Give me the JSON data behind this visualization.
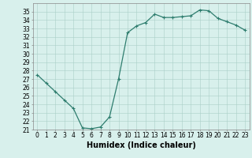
{
  "x": [
    0,
    1,
    2,
    3,
    4,
    5,
    6,
    7,
    8,
    9,
    10,
    11,
    12,
    13,
    14,
    15,
    16,
    17,
    18,
    19,
    20,
    21,
    22,
    23
  ],
  "y": [
    27.5,
    26.5,
    25.5,
    24.5,
    23.5,
    21.2,
    21.1,
    21.3,
    22.5,
    27.0,
    32.5,
    33.3,
    33.7,
    34.7,
    34.3,
    34.3,
    34.4,
    34.5,
    35.2,
    35.1,
    34.2,
    33.8,
    33.4,
    32.8
  ],
  "line_color": "#2e7d6e",
  "marker": "+",
  "marker_size": 3,
  "bg_color": "#d8f0ec",
  "grid_color": "#aacfc8",
  "xlabel": "Humidex (Indice chaleur)",
  "ylim": [
    21,
    36
  ],
  "xlim": [
    -0.5,
    23.5
  ],
  "yticks": [
    21,
    22,
    23,
    24,
    25,
    26,
    27,
    28,
    29,
    30,
    31,
    32,
    33,
    34,
    35
  ],
  "xtick_labels": [
    "0",
    "1",
    "2",
    "3",
    "4",
    "5",
    "6",
    "7",
    "8",
    "9",
    "10",
    "11",
    "12",
    "13",
    "14",
    "15",
    "16",
    "17",
    "18",
    "19",
    "20",
    "21",
    "22",
    "23"
  ],
  "tick_fontsize": 5.5,
  "xlabel_fontsize": 7.0,
  "line_width": 0.9
}
